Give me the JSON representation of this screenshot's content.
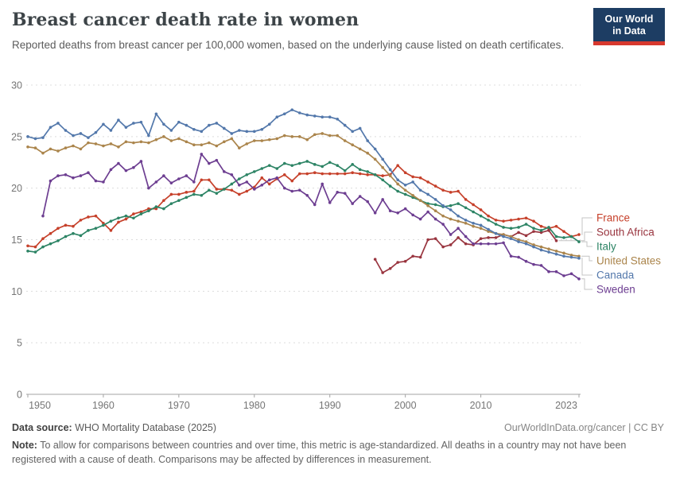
{
  "header": {
    "title": "Breast cancer death rate in women",
    "subtitle": "Reported deaths from breast cancer per 100,000 women, based on the underlying cause listed on death certificates."
  },
  "logo": {
    "line1": "Our World",
    "line2": "in Data",
    "bg_color": "#1d3d63",
    "bar_color": "#d7382e"
  },
  "chart_data": {
    "type": "line",
    "title": "Breast cancer death rate in women",
    "x_axis": {
      "tick_years": [
        1950,
        1960,
        1970,
        1980,
        1990,
        2000,
        2010,
        2023
      ],
      "range": [
        1950,
        2023
      ]
    },
    "y_axis": {
      "ticks": [
        0,
        5,
        10,
        15,
        20,
        25,
        30
      ],
      "range": [
        0,
        30
      ],
      "grid": "dashed"
    },
    "legend_position": "right",
    "grid_color": "#dcdcdc",
    "axis_color": "#a3a3a3",
    "tick_label_color": "#757575",
    "connector_color": "#c4c4c4",
    "series": [
      {
        "name": "France",
        "color": "#c6402a",
        "start_year": 1950,
        "end_year": 2023,
        "values": [
          14.4,
          14.3,
          15.1,
          15.6,
          16.1,
          16.4,
          16.3,
          16.9,
          17.2,
          17.3,
          16.6,
          15.9,
          16.7,
          17.0,
          17.5,
          17.7,
          18.0,
          18.0,
          18.8,
          19.4,
          19.4,
          19.6,
          19.7,
          20.8,
          20.8,
          19.9,
          19.9,
          19.8,
          19.4,
          19.7,
          20.1,
          21.0,
          20.4,
          20.9,
          21.3,
          20.7,
          21.4,
          21.4,
          21.5,
          21.4,
          21.4,
          21.4,
          21.4,
          21.5,
          21.4,
          21.3,
          21.3,
          21.2,
          21.3,
          22.2,
          21.5,
          21.1,
          21.0,
          20.6,
          20.2,
          19.8,
          19.6,
          19.7,
          18.9,
          18.4,
          17.9,
          17.3,
          16.9,
          16.8,
          16.9,
          17.0,
          17.1,
          16.8,
          16.3,
          16.1,
          16.3,
          15.8,
          15.3,
          15.5
        ]
      },
      {
        "name": "South Africa",
        "color": "#99353f",
        "start_year": 1996,
        "end_year": 2020,
        "values": [
          13.1,
          11.8,
          12.2,
          12.8,
          12.9,
          13.4,
          13.3,
          15.0,
          15.1,
          14.3,
          14.5,
          15.2,
          14.6,
          14.5,
          15.1,
          15.2,
          15.2,
          15.5,
          15.3,
          15.7,
          15.4,
          15.8,
          15.7,
          15.9,
          14.9
        ]
      },
      {
        "name": "Italy",
        "color": "#2d8465",
        "start_year": 1950,
        "end_year": 2023,
        "values": [
          13.9,
          13.8,
          14.3,
          14.6,
          14.9,
          15.3,
          15.6,
          15.4,
          15.9,
          16.1,
          16.4,
          16.8,
          17.1,
          17.3,
          17.1,
          17.5,
          17.8,
          18.2,
          18.0,
          18.5,
          18.8,
          19.1,
          19.4,
          19.3,
          19.8,
          19.5,
          19.9,
          20.4,
          20.9,
          21.3,
          21.6,
          21.9,
          22.2,
          21.9,
          22.4,
          22.2,
          22.4,
          22.6,
          22.3,
          22.1,
          22.5,
          22.2,
          21.7,
          22.3,
          21.8,
          21.6,
          21.3,
          20.8,
          20.2,
          19.7,
          19.4,
          19.1,
          18.8,
          18.5,
          18.4,
          18.2,
          18.3,
          18.5,
          18.1,
          17.7,
          17.3,
          16.9,
          16.5,
          16.2,
          16.1,
          16.2,
          16.5,
          16.1,
          15.9,
          16.2,
          15.3,
          15.2,
          15.3,
          14.8
        ]
      },
      {
        "name": "United States",
        "color": "#ab854c",
        "start_year": 1950,
        "end_year": 2023,
        "values": [
          24.0,
          23.9,
          23.4,
          23.8,
          23.6,
          23.9,
          24.1,
          23.8,
          24.4,
          24.3,
          24.1,
          24.3,
          24.0,
          24.5,
          24.4,
          24.5,
          24.4,
          24.7,
          25.0,
          24.6,
          24.8,
          24.5,
          24.2,
          24.2,
          24.4,
          24.1,
          24.5,
          24.8,
          23.9,
          24.3,
          24.6,
          24.6,
          24.7,
          24.8,
          25.1,
          25.0,
          25.0,
          24.7,
          25.2,
          25.3,
          25.1,
          25.1,
          24.6,
          24.2,
          23.8,
          23.4,
          22.8,
          22.0,
          21.2,
          20.4,
          19.8,
          19.3,
          18.8,
          18.3,
          17.8,
          17.3,
          17.0,
          16.8,
          16.6,
          16.3,
          16.1,
          15.8,
          15.6,
          15.5,
          15.3,
          15.0,
          14.8,
          14.5,
          14.3,
          14.1,
          13.9,
          13.7,
          13.5,
          13.4
        ]
      },
      {
        "name": "Canada",
        "color": "#5378ab",
        "start_year": 1950,
        "end_year": 2023,
        "values": [
          25.0,
          24.8,
          24.9,
          25.9,
          26.3,
          25.6,
          25.1,
          25.3,
          24.9,
          25.4,
          26.2,
          25.6,
          26.6,
          25.9,
          26.3,
          26.4,
          25.1,
          27.2,
          26.2,
          25.6,
          26.4,
          26.1,
          25.7,
          25.5,
          26.1,
          26.3,
          25.8,
          25.3,
          25.6,
          25.5,
          25.5,
          25.7,
          26.2,
          26.9,
          27.2,
          27.6,
          27.3,
          27.1,
          27.0,
          26.9,
          26.9,
          26.7,
          26.1,
          25.5,
          25.8,
          24.6,
          23.8,
          22.8,
          21.8,
          20.8,
          20.3,
          20.6,
          19.8,
          19.4,
          18.9,
          18.3,
          17.9,
          17.3,
          16.9,
          16.6,
          16.4,
          16.0,
          15.6,
          15.3,
          15.1,
          14.8,
          14.6,
          14.3,
          14.0,
          13.8,
          13.6,
          13.4,
          13.3,
          13.2
        ]
      },
      {
        "name": "Sweden",
        "color": "#6d3e91",
        "start_year": 1952,
        "end_year": 2023,
        "values": [
          17.3,
          20.7,
          21.2,
          21.3,
          21.0,
          21.2,
          21.5,
          20.7,
          20.6,
          21.8,
          22.4,
          21.7,
          22.0,
          22.6,
          20.0,
          20.6,
          21.2,
          20.5,
          20.9,
          21.2,
          20.6,
          23.3,
          22.4,
          22.7,
          21.6,
          21.3,
          20.3,
          20.6,
          19.9,
          20.3,
          20.8,
          21.0,
          20.0,
          19.7,
          19.8,
          19.3,
          18.4,
          20.4,
          18.6,
          19.6,
          19.5,
          18.5,
          19.2,
          18.7,
          17.6,
          18.9,
          17.8,
          17.6,
          18.0,
          17.4,
          17.0,
          17.7,
          17.0,
          16.5,
          15.5,
          16.1,
          15.3,
          14.6,
          14.6,
          14.6,
          14.6,
          14.7,
          13.4,
          13.3,
          12.9,
          12.6,
          12.5,
          11.9,
          11.9,
          11.5,
          11.7,
          11.2
        ]
      }
    ]
  },
  "footer": {
    "source_label": "Data source:",
    "source_text": " WHO Mortality Database (2025)",
    "link_text": "OurWorldInData.org/cancer | CC BY",
    "note_label": "Note:",
    "note_text": " To allow for comparisons between countries and over time, this metric is age-standardized. All deaths in a country may not have been registered with a cause of death. Comparisons may be affected by differences in measurement."
  }
}
